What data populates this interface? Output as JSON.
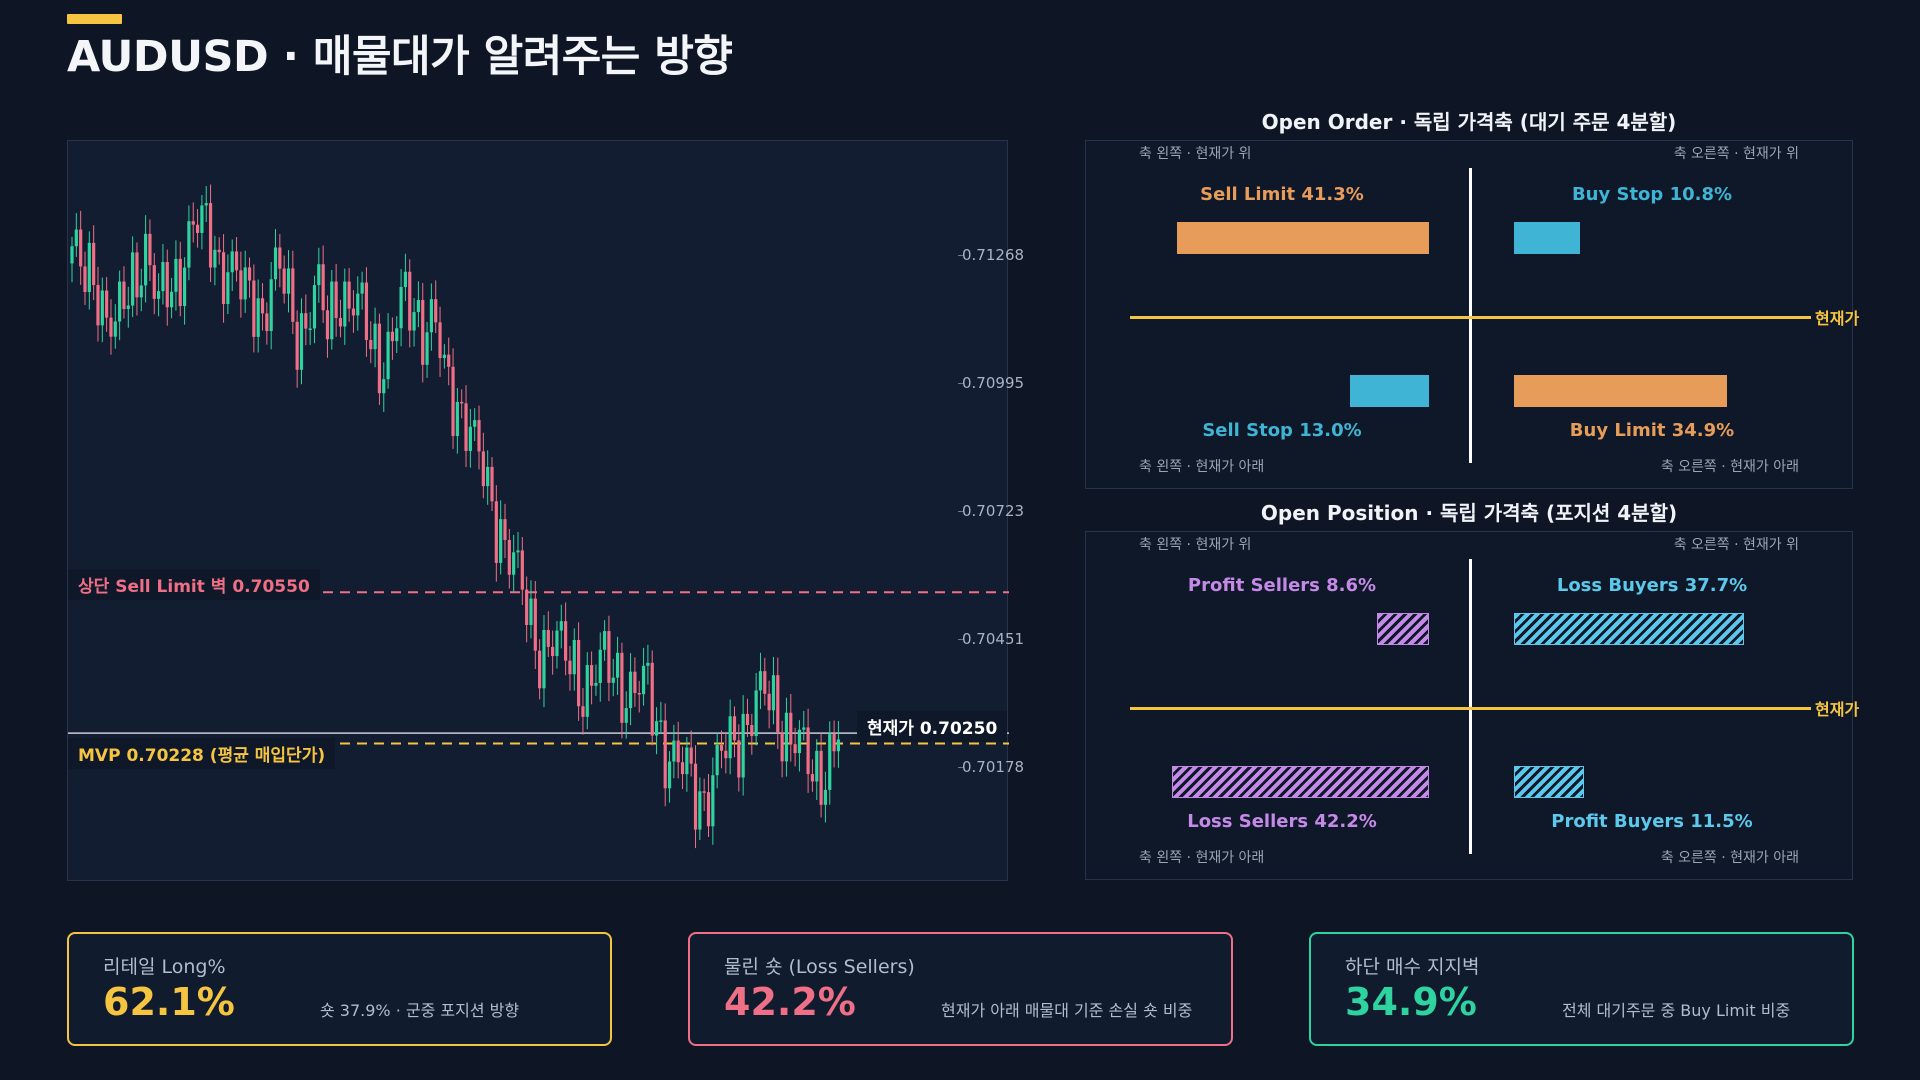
{
  "page": {
    "title": "AUDUSD · 매물대가 알려주는 방향",
    "accent_color": "#f5c542"
  },
  "price_chart": {
    "levels": {
      "sell_limit_wall": {
        "label": "상단 Sell Limit 벽 0.70550",
        "price": 0.7055,
        "color": "#ef6f86"
      },
      "mvp": {
        "label": "MVP 0.70228 (평균 매입단가)",
        "price": 0.70228,
        "color": "#f5c542"
      },
      "current": {
        "label": "현재가 0.70250",
        "price": 0.7025,
        "color": "#c8ccd4"
      }
    },
    "colors": {
      "up": "#2ed3a0",
      "down": "#ef6f86",
      "background": "#121d31"
    }
  },
  "order_panel": {
    "title": "Open Order · 독립 가격축 (대기 주문 4분할)",
    "corners": {
      "tl": "축 왼쪽 · 현재가 위",
      "tr": "축 오른쪽 · 현재가 위",
      "bl": "축 왼쪽 · 현재가 아래",
      "br": "축 오른쪽 · 현재가 아래"
    },
    "axis_label": "현재가",
    "quadrants": {
      "tl": {
        "label": "Sell Limit 41.3%",
        "percent": 41.3,
        "color": "#e89c5a"
      },
      "tr": {
        "label": "Buy Stop 10.8%",
        "percent": 10.8,
        "color": "#3fb4d4"
      },
      "bl": {
        "label": "Sell Stop 13.0%",
        "percent": 13.0,
        "color": "#3fb4d4"
      },
      "br": {
        "label": "Buy Limit 34.9%",
        "percent": 34.9,
        "color": "#e89c5a"
      }
    }
  },
  "position_panel": {
    "title": "Open Position · 독립 가격축 (포지션 4분할)",
    "corners": {
      "tl": "축 왼쪽 · 현재가 위",
      "tr": "축 오른쪽 · 현재가 위",
      "bl": "축 왼쪽 · 현재가 아래",
      "br": "축 오른쪽 · 현재가 아래"
    },
    "axis_label": "현재가",
    "quadrants": {
      "tl": {
        "label": "Profit Sellers 8.6%",
        "percent": 8.6,
        "color": "#c58ae8"
      },
      "tr": {
        "label": "Loss Buyers 37.7%",
        "percent": 37.7,
        "color": "#5cc8ec"
      },
      "bl": {
        "label": "Loss Sellers 42.2%",
        "percent": 42.2,
        "color": "#c58ae8"
      },
      "br": {
        "label": "Profit Buyers 11.5%",
        "percent": 11.5,
        "color": "#5cc8ec"
      }
    }
  },
  "stats": [
    {
      "label": "리테일 Long%",
      "value": "62.1%",
      "note": "숏 37.9% · 군중 포지션 방향",
      "color": "#f5c542"
    },
    {
      "label": "물린 숏 (Loss Sellers)",
      "value": "42.2%",
      "note": "현재가 아래 매물대 기준 손실 숏 비중",
      "color": "#ef6f86"
    },
    {
      "label": "하단 매수 지지벽",
      "value": "34.9%",
      "note": "전체 대기주문 중 Buy Limit 비중",
      "color": "#2ed3a0"
    }
  ],
  "chart_data": {
    "type": "candlestick",
    "title": "",
    "xlabel": "",
    "ylabel": "",
    "ylim": [
      0.7004,
      0.714
    ],
    "yticks": [
      "0.71268",
      "0.70995",
      "0.70723",
      "0.70451",
      "0.70178"
    ],
    "ytick_values": [
      0.71268,
      0.70995,
      0.70723,
      0.70451,
      0.70178
    ],
    "reference_lines": [
      {
        "name": "상단 Sell Limit 벽",
        "value": 0.7055
      },
      {
        "name": "MVP",
        "value": 0.70228
      },
      {
        "name": "현재가",
        "value": 0.7025
      }
    ],
    "path": [
      0.7125,
      0.7124,
      0.7126,
      0.7113,
      0.7108,
      0.712,
      0.7125,
      0.7126,
      0.7114,
      0.7123,
      0.7123,
      0.7128,
      0.7133,
      0.7134,
      0.7124,
      0.7121,
      0.7119,
      0.7121,
      0.7113,
      0.7121,
      0.7122,
      0.7113,
      0.7111,
      0.7118,
      0.7113,
      0.7121,
      0.7115,
      0.7114,
      0.7111,
      0.7105,
      0.7106,
      0.7116,
      0.7118,
      0.7112,
      0.7112,
      0.71,
      0.7097,
      0.7093,
      0.7084,
      0.7076,
      0.7071,
      0.7065,
      0.7056,
      0.7048,
      0.7044,
      0.7045,
      0.7041,
      0.704,
      0.7036,
      0.7036,
      0.7039,
      0.7039,
      0.7035,
      0.7033,
      0.7034,
      0.7028,
      0.7021,
      0.7017,
      0.7015,
      0.7012,
      0.7014,
      0.7019,
      0.7022,
      0.7027,
      0.7031,
      0.7032,
      0.703,
      0.7027,
      0.7024,
      0.7017,
      0.7015,
      0.7021,
      0.7025
    ]
  }
}
